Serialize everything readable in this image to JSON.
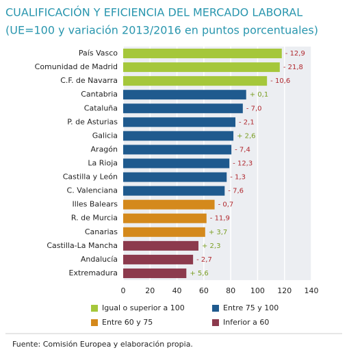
{
  "chart_data": {
    "type": "bar",
    "orientation": "horizontal",
    "title": "CUALIFICACIÓN Y EFICIENCIA DEL MERCADO LABORAL",
    "subtitle": "(UE=100 y variación 2013/2016 en puntos porcentuales)",
    "categories": [
      "País Vasco",
      "Comunidad de Madrid",
      "C.F. de Navarra",
      "Cantabria",
      "Cataluña",
      "P. de Asturias",
      "Galicia",
      "Aragón",
      "La Rioja",
      "Castilla y León",
      "C. Valenciana",
      "Illes Balears",
      "R. de Murcia",
      "Canarias",
      "Castilla-La Mancha",
      "Andalucía",
      "Extremadura"
    ],
    "values": [
      118,
      116.5,
      107,
      91.5,
      89,
      83.5,
      82,
      80.5,
      79,
      77,
      75.5,
      68,
      62,
      61,
      56,
      52,
      47
    ],
    "colors": [
      "#a5c73b",
      "#a5c73b",
      "#a5c73b",
      "#1f5a8e",
      "#1f5a8e",
      "#1f5a8e",
      "#1f5a8e",
      "#1f5a8e",
      "#1f5a8e",
      "#1f5a8e",
      "#1f5a8e",
      "#d4891c",
      "#d4891c",
      "#d4891c",
      "#8c3a4d",
      "#8c3a4d",
      "#8c3a4d"
    ],
    "changes": [
      -12.9,
      -21.8,
      -10.6,
      0.1,
      -7.0,
      -2.1,
      2.6,
      -7.4,
      -12.3,
      -1.3,
      -7.6,
      -0.7,
      -11.9,
      3.7,
      2.3,
      -2.7,
      5.6
    ],
    "change_labels": [
      "- 12,9",
      "- 21,8",
      "- 10,6",
      "+ 0,1",
      "- 7,0",
      "- 2,1",
      "+ 2,6",
      "- 7,4",
      "- 12,3",
      "- 1,3",
      "- 7,6",
      "- 0,7",
      "- 11,9",
      "+ 3,7",
      "+ 2,3",
      "- 2,7",
      "+ 5,6"
    ],
    "xlim": [
      0,
      140
    ],
    "xticks": [
      0,
      20,
      40,
      60,
      80,
      100,
      120,
      140
    ],
    "grid": true,
    "legend": [
      {
        "label": "Igual o superior a 100",
        "color": "#a5c73b"
      },
      {
        "label": "Entre 75 y 100",
        "color": "#1f5a8e"
      },
      {
        "label": "Entre 60 y 75",
        "color": "#d4891c"
      },
      {
        "label": "Inferior a 60",
        "color": "#8c3a4d"
      }
    ],
    "source": "Fuente: Comisión Europea y elaboración propia."
  }
}
